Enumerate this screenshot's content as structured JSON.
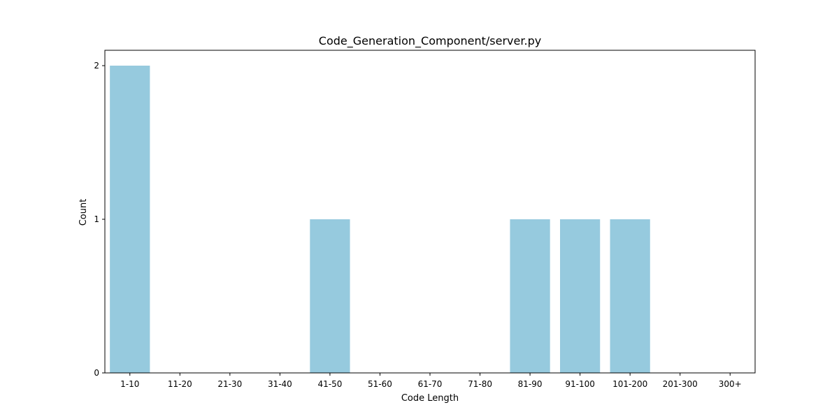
{
  "chart_data": {
    "type": "bar",
    "title": "Code_Generation_Component/server.py",
    "xlabel": "Code Length",
    "ylabel": "Count",
    "categories": [
      "1-10",
      "11-20",
      "21-30",
      "31-40",
      "41-50",
      "51-60",
      "61-70",
      "71-80",
      "81-90",
      "91-100",
      "101-200",
      "201-300",
      "300+"
    ],
    "values": [
      2,
      0,
      0,
      0,
      1,
      0,
      0,
      0,
      1,
      1,
      1,
      0,
      0
    ],
    "ylim": [
      0,
      2.1
    ],
    "yticks": [
      0,
      1,
      2
    ],
    "grid": false,
    "bar_color": "#96cade"
  }
}
